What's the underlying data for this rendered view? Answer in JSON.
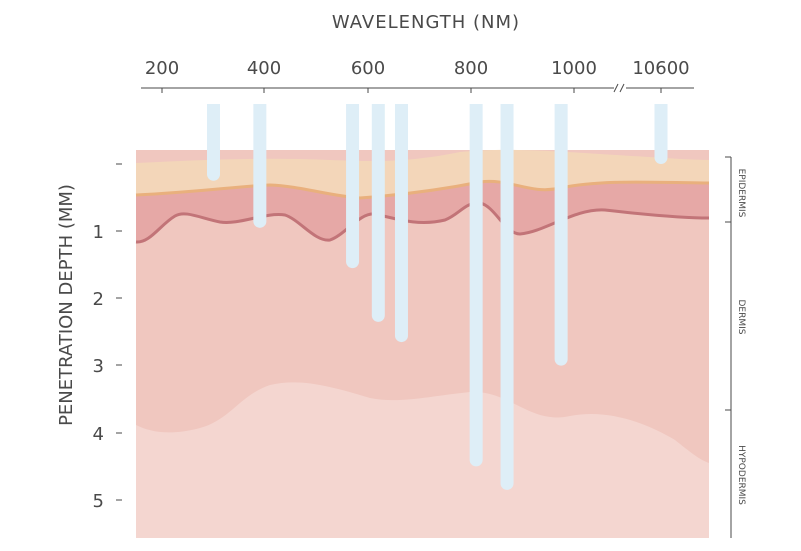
{
  "chart_data": {
    "type": "diagram",
    "title": "WAVELENGTH (NM)",
    "ylabel": "PENETRATION DEPTH (MM)",
    "x_ticks": [
      "200",
      "400",
      "600",
      "800",
      "1000",
      "10600"
    ],
    "y_ticks": [
      "1",
      "2",
      "3",
      "4",
      "5"
    ],
    "ylim": [
      0,
      5.6
    ],
    "layers": [
      "EPIDERMIS",
      "DERMIS",
      "HYPODERMIS"
    ],
    "beams": [
      {
        "wavelength_nm": 300,
        "depth_mm": 0.25
      },
      {
        "wavelength_nm": 390,
        "depth_mm": 0.95
      },
      {
        "wavelength_nm": 570,
        "depth_mm": 1.55
      },
      {
        "wavelength_nm": 620,
        "depth_mm": 2.35
      },
      {
        "wavelength_nm": 665,
        "depth_mm": 2.65
      },
      {
        "wavelength_nm": 810,
        "depth_mm": 4.5
      },
      {
        "wavelength_nm": 870,
        "depth_mm": 4.85
      },
      {
        "wavelength_nm": 975,
        "depth_mm": 3.0
      },
      {
        "wavelength_nm": 10600,
        "depth_mm": 0.0
      }
    ],
    "colors": {
      "epidermis": "#f3d6b9",
      "dermis_upper": "#e6a8a6",
      "dermis": "#f0c7bf",
      "hypodermis": "#f4d6d0",
      "dermis_line": "#c27478",
      "epidermis_line": "#e9b07d",
      "beam": "#deeef7",
      "axis": "#4a4a4a"
    }
  }
}
